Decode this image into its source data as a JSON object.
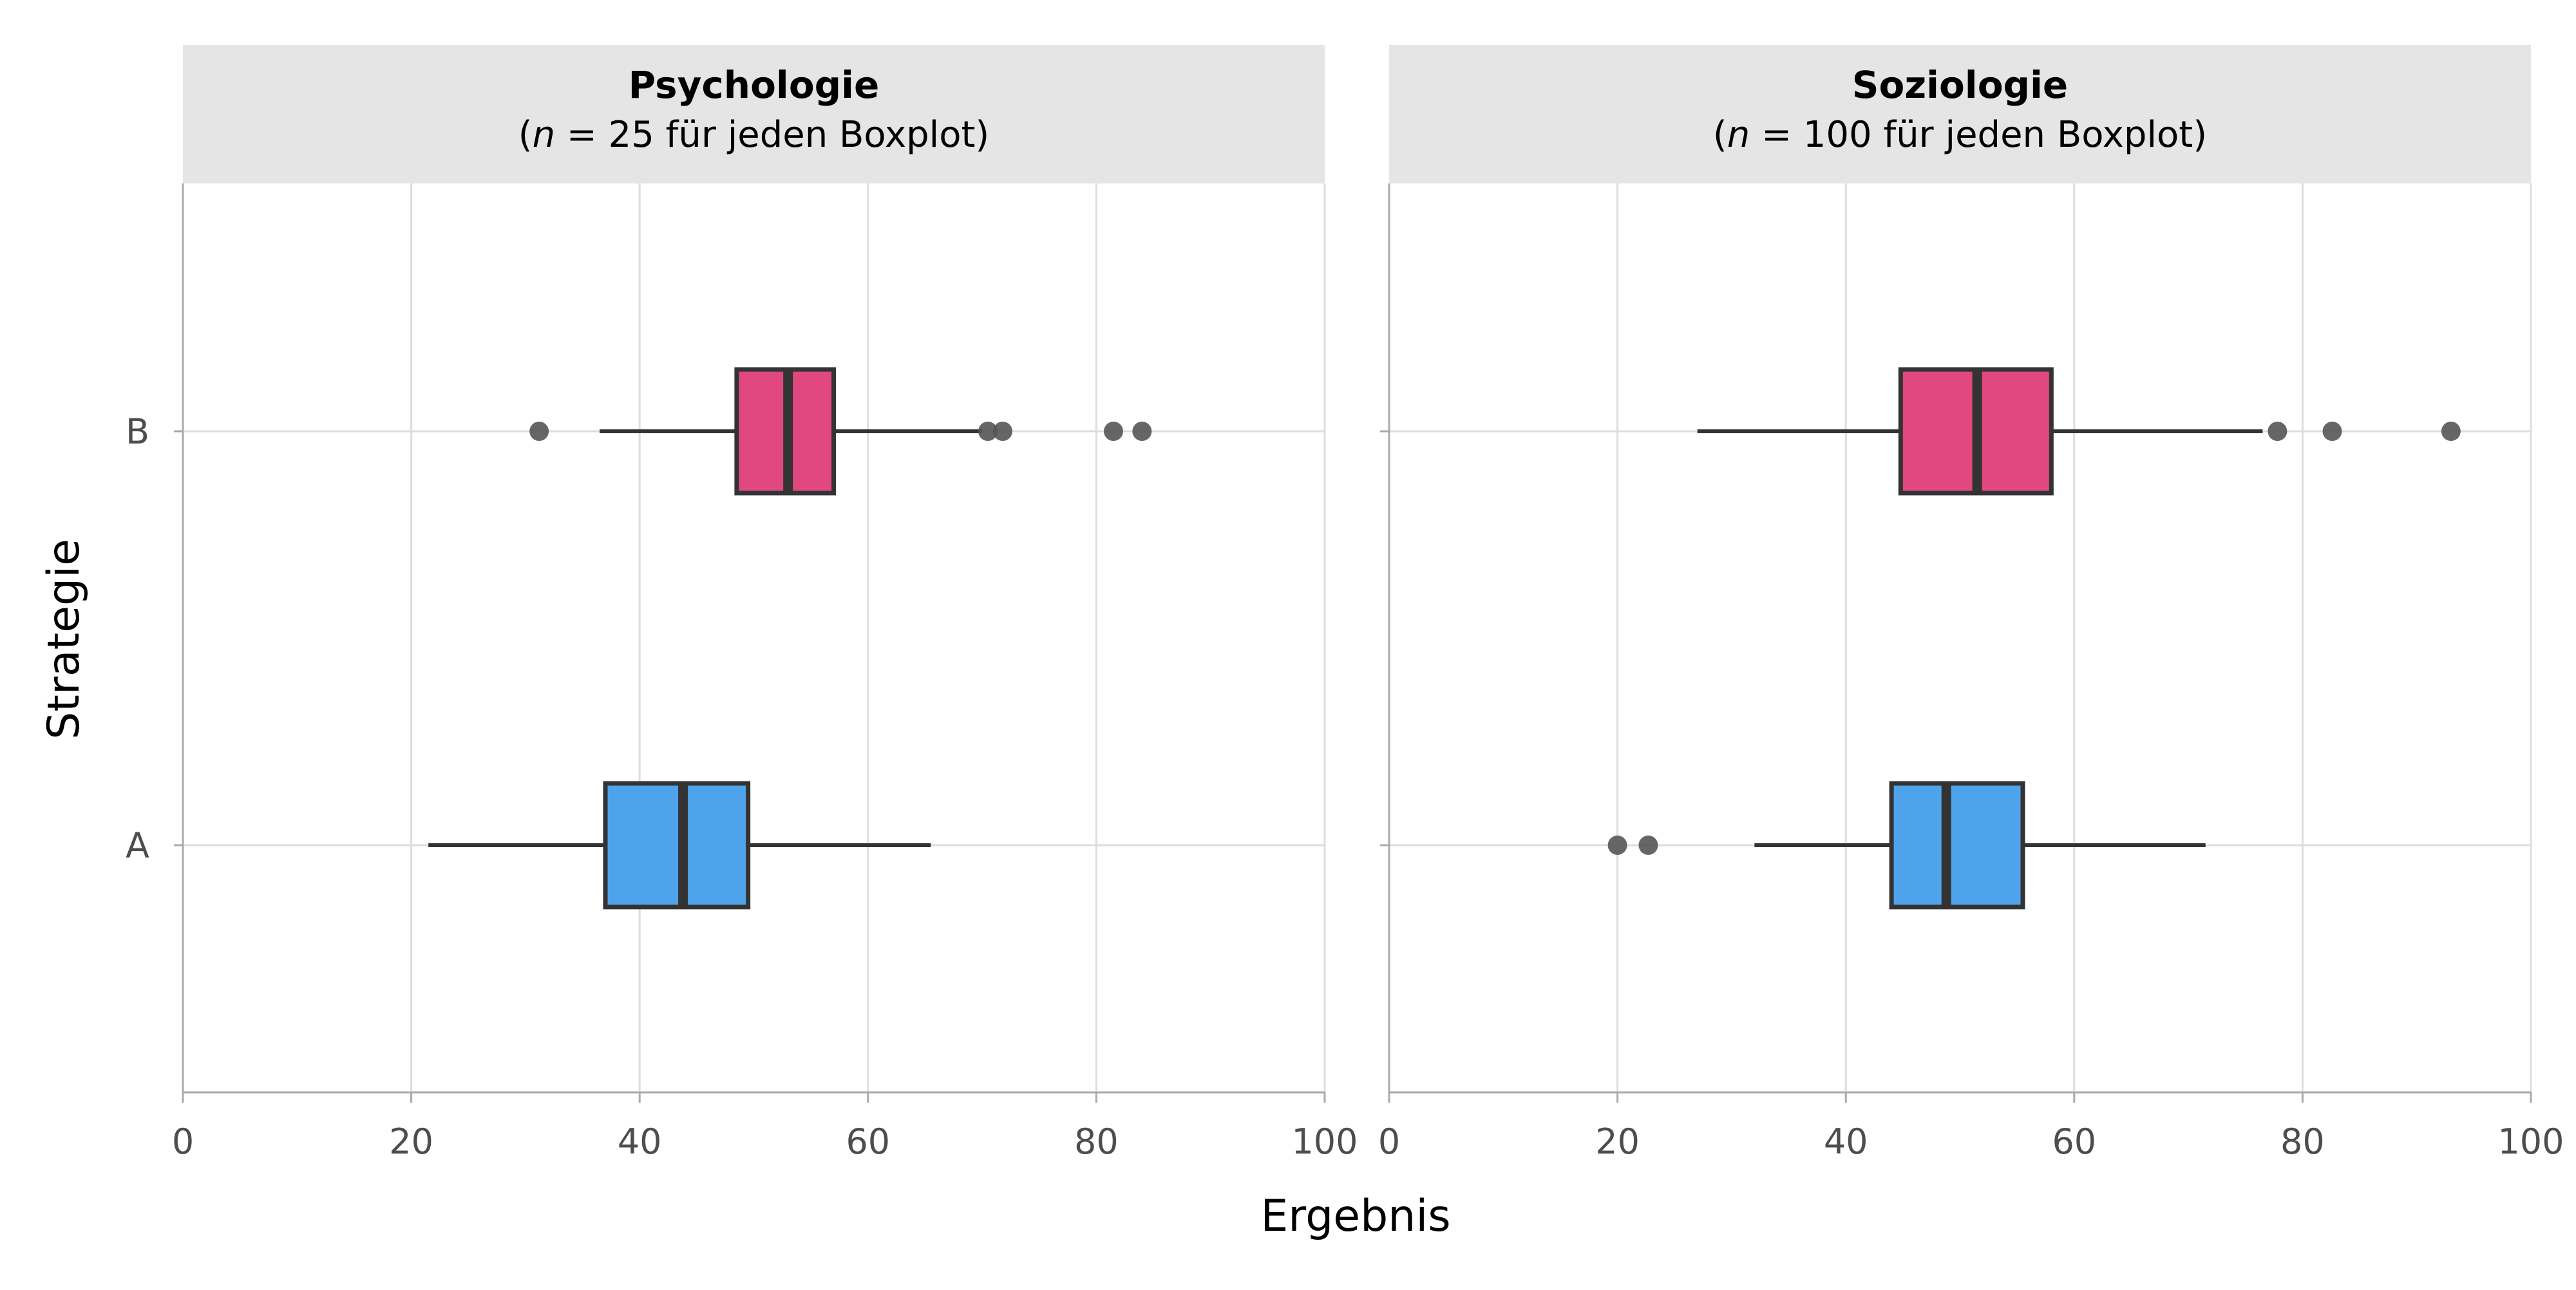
{
  "chart_data": {
    "type": "boxplot",
    "orientation": "horizontal",
    "xlabel": "Ergebnis",
    "ylabel": "Strategie",
    "xlim": [
      0,
      100
    ],
    "xticks": [
      0,
      20,
      40,
      60,
      80,
      100
    ],
    "categories": [
      "A",
      "B"
    ],
    "grid": true,
    "colors": {
      "A": "#4FA3EB",
      "B": "#E0487F",
      "outline": "#333333",
      "outlier": "#555555",
      "strip_bg": "#E5E5E5",
      "grid": "#DDDDDD"
    },
    "panels": [
      {
        "title": "Psychologie",
        "subtitle_parts": [
          "(",
          "n",
          " = 25 für jeden Boxplot)"
        ],
        "boxes": [
          {
            "category": "A",
            "whisker_low": 21.5,
            "q1": 37.0,
            "median": 43.8,
            "q3": 49.5,
            "whisker_high": 65.5,
            "outliers": []
          },
          {
            "category": "B",
            "whisker_low": 36.5,
            "q1": 48.5,
            "median": 53.0,
            "q3": 57.0,
            "whisker_high": 70.0,
            "outliers": [
              31.2,
              70.5,
              71.8,
              81.5,
              84.0
            ]
          }
        ]
      },
      {
        "title": "Soziologie",
        "subtitle_parts": [
          "(",
          "n",
          " = 100 für jeden Boxplot)"
        ],
        "boxes": [
          {
            "category": "A",
            "whisker_low": 32.0,
            "q1": 44.0,
            "median": 48.8,
            "q3": 55.5,
            "whisker_high": 71.5,
            "outliers": [
              20.0,
              22.7
            ]
          },
          {
            "category": "B",
            "whisker_low": 27.0,
            "q1": 44.8,
            "median": 51.5,
            "q3": 58.0,
            "whisker_high": 76.5,
            "outliers": [
              77.8,
              82.6,
              93.0
            ]
          }
        ]
      }
    ]
  }
}
